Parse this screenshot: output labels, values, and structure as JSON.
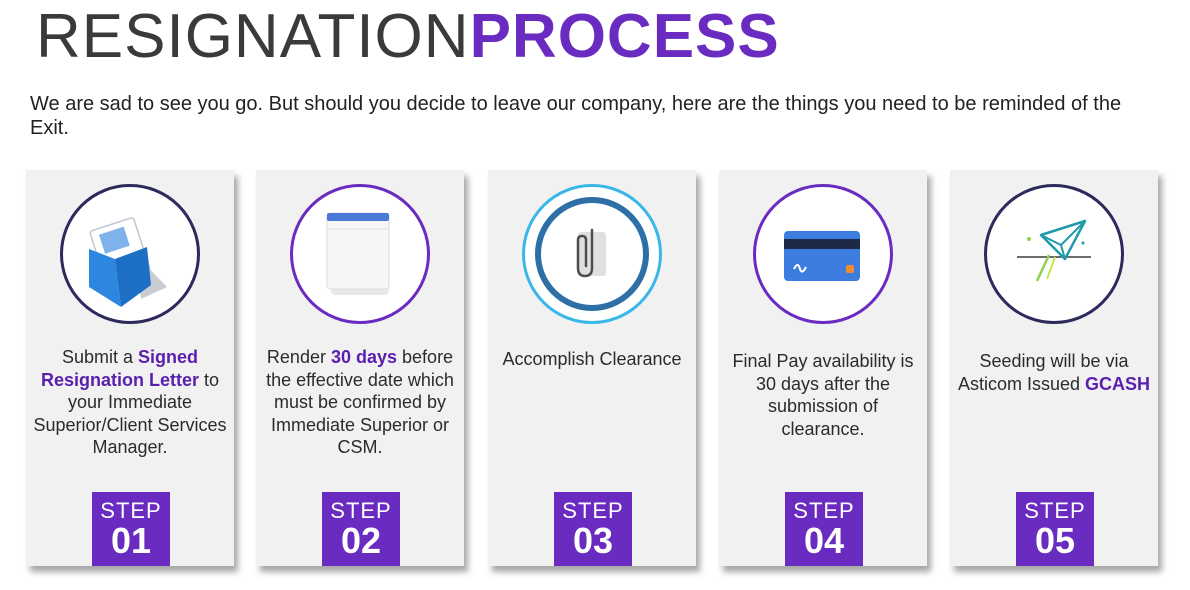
{
  "header": {
    "title_light": "RESIGNATION",
    "title_bold": "PROCESS",
    "intro": "We are sad to see you go. But should you decide to leave our company, here are the things you need to be reminded of the Exit."
  },
  "colors": {
    "accent": "#6a2bc0",
    "card_bg": "#f1f1f1",
    "navy_ring": "#2c2a5c",
    "light_blue_ring": "#3bb6e8"
  },
  "steps": [
    {
      "icon": "envelope-letter-icon",
      "pre": "Submit a ",
      "bold": "Signed Resignation Letter",
      "post": " to your Immediate Superior/Client Services Manager.",
      "step_label": "STEP",
      "step_num": "01"
    },
    {
      "icon": "notepad-icon",
      "pre": "Render ",
      "bold": "30 days",
      "post": " before the effective date which must be confirmed by Immediate Superior or CSM.",
      "step_label": "STEP",
      "step_num": "02"
    },
    {
      "icon": "paperclip-icon",
      "pre": "Accomplish Clearance",
      "bold": "",
      "post": "",
      "step_label": "STEP",
      "step_num": "03"
    },
    {
      "icon": "credit-card-icon",
      "pre": "Final Pay availability is 30 days after the submission of clearance.",
      "bold": "",
      "post": "",
      "step_label": "STEP",
      "step_num": "04"
    },
    {
      "icon": "paper-plane-icon",
      "pre": "Seeding will be via Asticom Issued ",
      "bold": "GCASH",
      "post": "",
      "step_label": "STEP",
      "step_num": "05"
    }
  ]
}
